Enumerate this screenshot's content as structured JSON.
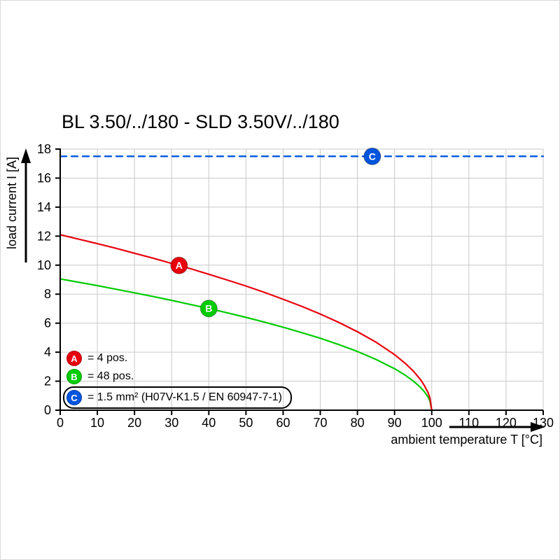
{
  "title": "BL 3.50/../180 - SLD 3.50V/../180",
  "legend": [
    {
      "id": "A",
      "label": "= 4 pos.",
      "color": "#e8000d",
      "boxed": false
    },
    {
      "id": "B",
      "label": "= 48 pos.",
      "color": "#00cc00",
      "boxed": false
    },
    {
      "id": "C",
      "label": "= 1.5 mm² (H07V-K1.5 / EN 60947-7-1)",
      "color": "#0055dd",
      "boxed": true
    }
  ],
  "chart_data": {
    "type": "line",
    "title": "BL 3.50/../180 - SLD 3.50V/../180",
    "xlabel": "ambient temperature T [°C]",
    "ylabel": "load current I [A]",
    "xlim": [
      0,
      130
    ],
    "ylim": [
      0,
      18
    ],
    "grid": true,
    "legend_position": "lower-left inside plot",
    "x_ticks": [
      0,
      10,
      20,
      30,
      40,
      50,
      60,
      70,
      80,
      90,
      100,
      110,
      120,
      130
    ],
    "y_ticks": [
      0,
      2,
      4,
      6,
      8,
      10,
      12,
      14,
      16,
      18
    ],
    "series": [
      {
        "name": "C",
        "label": "1.5 mm² (H07V-K1.5 / EN 60947-7-1)",
        "color": "#0055dd",
        "style": "dashed",
        "dashed": true,
        "marker": {
          "t": 84,
          "i": 17.5
        },
        "points": [
          [
            0,
            17.5
          ],
          [
            130,
            17.5
          ]
        ]
      },
      {
        "name": "B",
        "label": "48 pos.",
        "color": "#00cc00",
        "style": "solid",
        "dashed": false,
        "marker": {
          "t": 40,
          "i": 7.01
        },
        "points": [
          [
            0,
            9.05
          ],
          [
            5,
            8.82
          ],
          [
            10,
            8.59
          ],
          [
            15,
            8.34
          ],
          [
            20,
            8.09
          ],
          [
            25,
            7.84
          ],
          [
            30,
            7.57
          ],
          [
            35,
            7.29
          ],
          [
            40,
            7.01
          ],
          [
            45,
            6.71
          ],
          [
            50,
            6.4
          ],
          [
            55,
            6.07
          ],
          [
            60,
            5.72
          ],
          [
            65,
            5.35
          ],
          [
            70,
            4.96
          ],
          [
            75,
            4.52
          ],
          [
            80,
            4.05
          ],
          [
            85,
            3.5
          ],
          [
            90,
            2.86
          ],
          [
            93,
            2.39
          ],
          [
            95,
            2.02
          ],
          [
            97,
            1.57
          ],
          [
            98,
            1.28
          ],
          [
            99,
            0.91
          ],
          [
            99.5,
            0.64
          ],
          [
            100,
            0
          ]
        ]
      },
      {
        "name": "A",
        "label": "4 pos.",
        "color": "#e8000d",
        "style": "solid",
        "dashed": false,
        "marker": {
          "t": 32,
          "i": 9.98
        },
        "points": [
          [
            0,
            12.1
          ],
          [
            5,
            11.79
          ],
          [
            10,
            11.48
          ],
          [
            15,
            11.16
          ],
          [
            20,
            10.82
          ],
          [
            25,
            10.48
          ],
          [
            30,
            10.12
          ],
          [
            35,
            9.76
          ],
          [
            40,
            9.37
          ],
          [
            45,
            8.97
          ],
          [
            50,
            8.56
          ],
          [
            55,
            8.12
          ],
          [
            60,
            7.65
          ],
          [
            65,
            7.16
          ],
          [
            70,
            6.63
          ],
          [
            75,
            6.05
          ],
          [
            80,
            5.41
          ],
          [
            85,
            4.69
          ],
          [
            90,
            3.83
          ],
          [
            93,
            3.2
          ],
          [
            95,
            2.71
          ],
          [
            97,
            2.1
          ],
          [
            98,
            1.71
          ],
          [
            99,
            1.21
          ],
          [
            99.5,
            0.86
          ],
          [
            100,
            0
          ]
        ]
      }
    ]
  }
}
